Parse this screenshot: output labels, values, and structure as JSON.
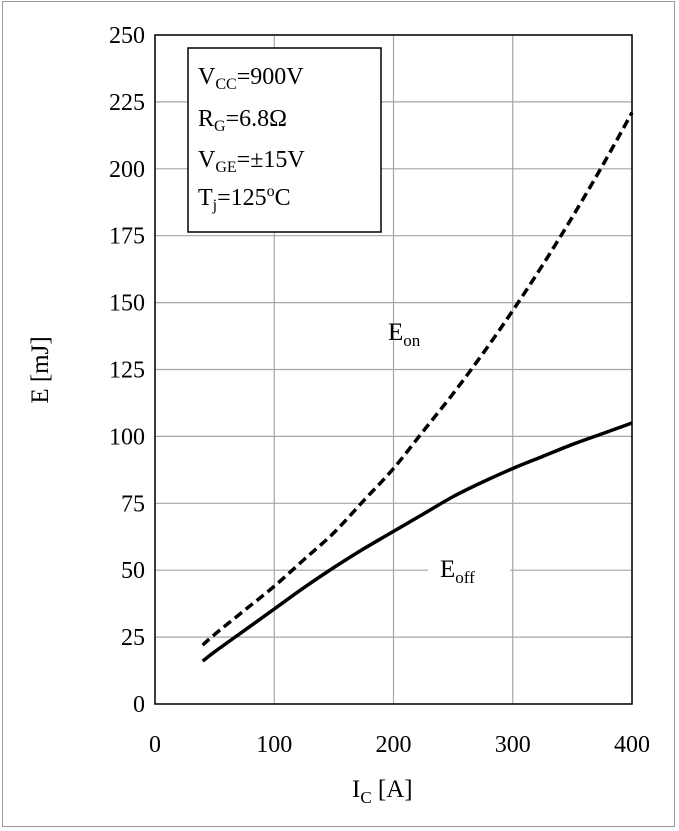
{
  "chart_data": {
    "type": "line",
    "xlabel": {
      "main": "I",
      "sub": "C",
      "rest": " [A]"
    },
    "ylabel": "E [mJ]",
    "xlim": [
      0,
      400
    ],
    "ylim": [
      0,
      250
    ],
    "xticks": [
      0,
      100,
      200,
      300,
      400
    ],
    "yticks": [
      0,
      25,
      50,
      75,
      100,
      125,
      150,
      175,
      200,
      225,
      250
    ],
    "grid": true,
    "conditions": [
      {
        "main": "V",
        "sub": "CC",
        "sup": "",
        "rest": "=900V"
      },
      {
        "main": "R",
        "sub": "G",
        "sup": "",
        "rest": "=6.8Ω"
      },
      {
        "main": "V",
        "sub": "GE",
        "sup": "",
        "rest": "=±15V"
      },
      {
        "main": "T",
        "sub": "j",
        "sup": "",
        "rest": "=125",
        "sup2": "o",
        "rest2": "C"
      }
    ],
    "series": [
      {
        "name": "E_on",
        "label_main": "E",
        "label_sub": "on",
        "style": "dashed",
        "x": [
          40,
          50,
          75,
          100,
          125,
          150,
          175,
          200,
          225,
          250,
          275,
          300,
          325,
          350,
          375,
          400
        ],
        "y": [
          22,
          26,
          35,
          44,
          54,
          64,
          76,
          88,
          102,
          116,
          131,
          147,
          164,
          182,
          201,
          221
        ]
      },
      {
        "name": "E_off",
        "label_main": "E",
        "label_sub": "off",
        "style": "solid",
        "x": [
          40,
          50,
          75,
          100,
          125,
          150,
          175,
          200,
          225,
          250,
          275,
          300,
          325,
          350,
          375,
          400
        ],
        "y": [
          16,
          19.5,
          27.5,
          35.5,
          43.5,
          51,
          58,
          64.5,
          71,
          77.5,
          83,
          88,
          92.5,
          97,
          101,
          105
        ]
      }
    ]
  }
}
